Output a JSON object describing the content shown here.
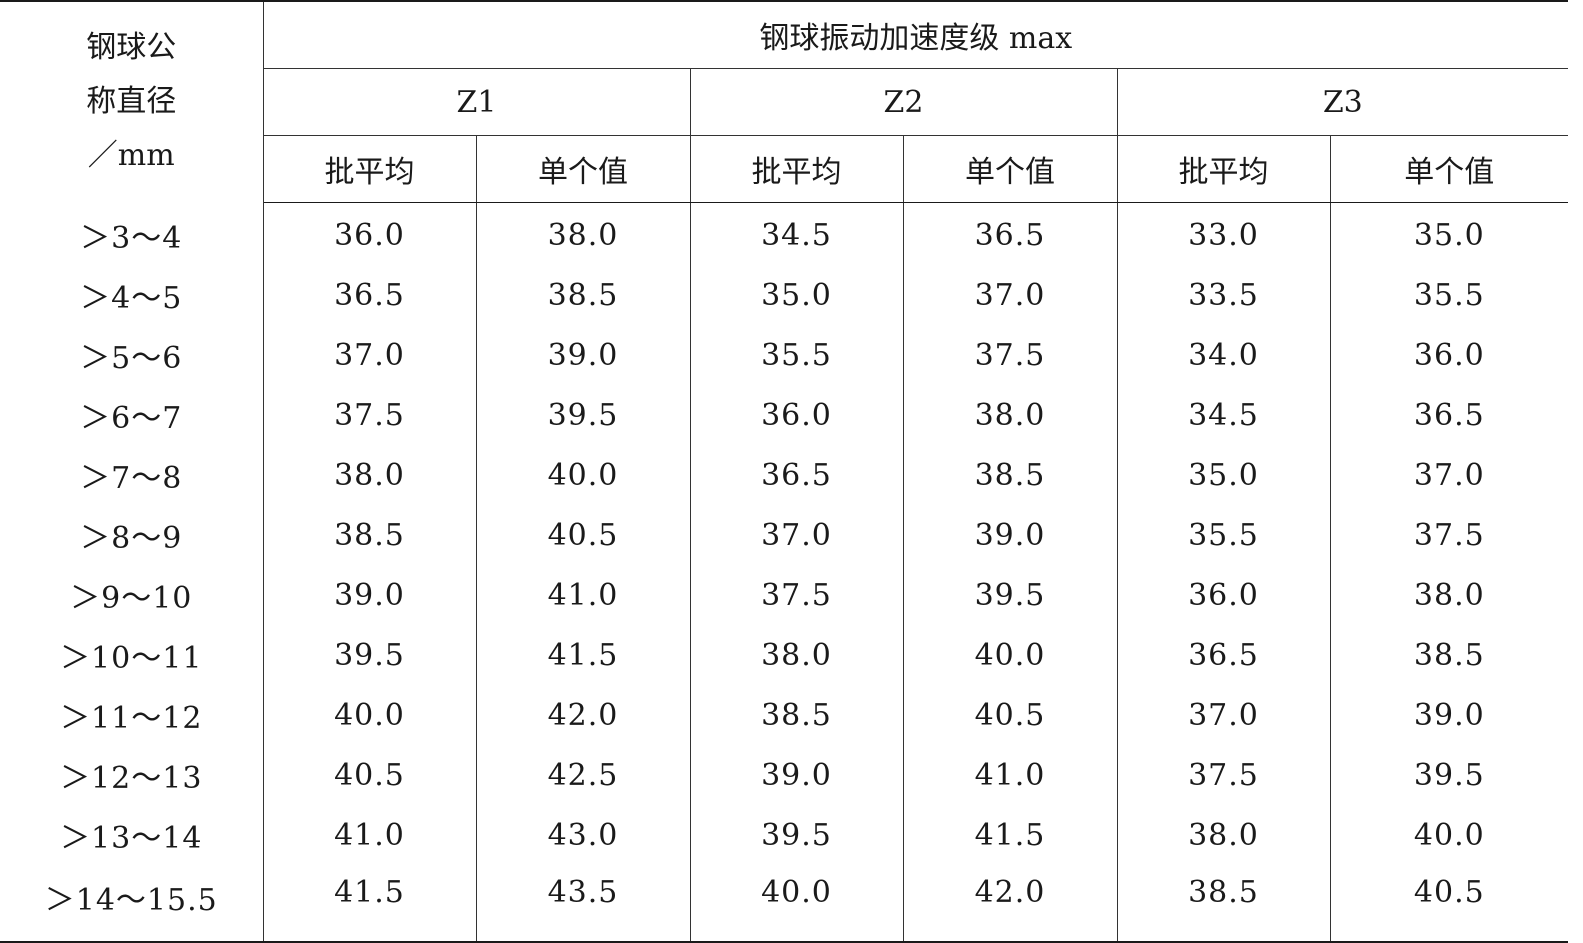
{
  "header": {
    "diameter_label_line1": "钢球公",
    "diameter_label_line2": "称直径",
    "diameter_label_line3": "／mm",
    "title": "钢球振动加速度级 max",
    "groups": [
      "Z1",
      "Z2",
      "Z3"
    ],
    "sub_batch": "批平均",
    "sub_single": "单个值"
  },
  "rows": [
    {
      "range": "＞3～4",
      "values": [
        "36.0",
        "38.0",
        "34.5",
        "36.5",
        "33.0",
        "35.0"
      ]
    },
    {
      "range": "＞4～5",
      "values": [
        "36.5",
        "38.5",
        "35.0",
        "37.0",
        "33.5",
        "35.5"
      ]
    },
    {
      "range": "＞5～6",
      "values": [
        "37.0",
        "39.0",
        "35.5",
        "37.5",
        "34.0",
        "36.0"
      ]
    },
    {
      "range": "＞6～7",
      "values": [
        "37.5",
        "39.5",
        "36.0",
        "38.0",
        "34.5",
        "36.5"
      ]
    },
    {
      "range": "＞7～8",
      "values": [
        "38.0",
        "40.0",
        "36.5",
        "38.5",
        "35.0",
        "37.0"
      ]
    },
    {
      "range": "＞8～9",
      "values": [
        "38.5",
        "40.5",
        "37.0",
        "39.0",
        "35.5",
        "37.5"
      ]
    },
    {
      "range": "＞9～10",
      "values": [
        "39.0",
        "41.0",
        "37.5",
        "39.5",
        "36.0",
        "38.0"
      ]
    },
    {
      "range": "＞10～11",
      "values": [
        "39.5",
        "41.5",
        "38.0",
        "40.0",
        "36.5",
        "38.5"
      ]
    },
    {
      "range": "＞11～12",
      "values": [
        "40.0",
        "42.0",
        "38.5",
        "40.5",
        "37.0",
        "39.0"
      ]
    },
    {
      "range": "＞12～13",
      "values": [
        "40.5",
        "42.5",
        "39.0",
        "41.0",
        "37.5",
        "39.5"
      ]
    },
    {
      "range": "＞13～14",
      "values": [
        "41.0",
        "43.0",
        "39.5",
        "41.5",
        "38.0",
        "40.0"
      ]
    },
    {
      "range": "＞14～15.5",
      "values": [
        "41.5",
        "43.5",
        "40.0",
        "42.0",
        "38.5",
        "40.5"
      ]
    }
  ]
}
